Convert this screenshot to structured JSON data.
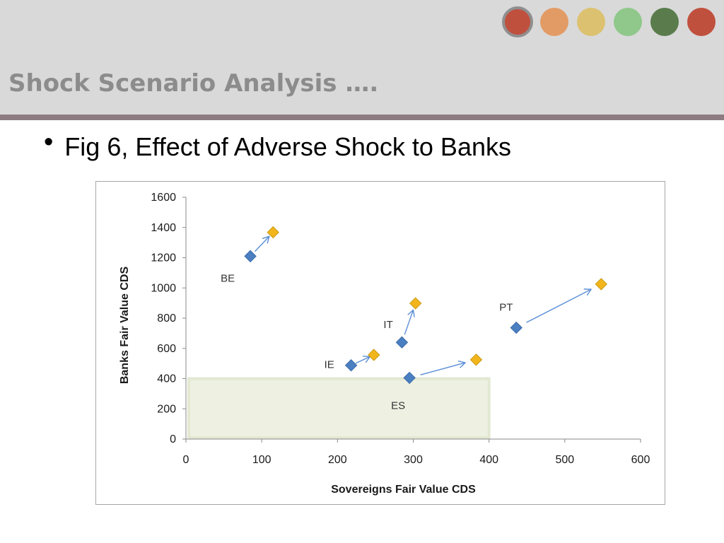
{
  "header": {
    "title": "Shock Scenario Analysis ….",
    "dots": [
      {
        "color": "#c0503e",
        "active": true
      },
      {
        "color": "#e39b65",
        "active": false
      },
      {
        "color": "#dcc170",
        "active": false
      },
      {
        "color": "#8fc88a",
        "active": false
      },
      {
        "color": "#5a7c4c",
        "active": false
      },
      {
        "color": "#c0503e",
        "active": false
      }
    ]
  },
  "bullet": {
    "glyph": "•",
    "text": "Fig 6, Effect of Adverse Shock to Banks"
  },
  "chart_data": {
    "type": "scatter",
    "title": "",
    "xlabel": "Sovereigns Fair Value CDS",
    "ylabel": "Banks Fair Value CDS",
    "xlim": [
      0,
      600
    ],
    "ylim": [
      0,
      1600
    ],
    "xticks": [
      0,
      100,
      200,
      300,
      400,
      500,
      600
    ],
    "yticks": [
      0,
      200,
      400,
      600,
      800,
      1000,
      1200,
      1400,
      1600
    ],
    "grid": false,
    "legend": "none",
    "shaded_region": {
      "x": [
        0,
        400
      ],
      "y": [
        0,
        400
      ],
      "color": "#eef1e2",
      "border": "#e3e8d3"
    },
    "series": [
      {
        "color": "#4a7fc1",
        "points": [
          {
            "label": "BE",
            "x": 85,
            "y": 1210
          },
          {
            "label": "IT",
            "x": 285,
            "y": 640
          },
          {
            "label": "IE",
            "x": 218,
            "y": 488
          },
          {
            "label": "ES",
            "x": 295,
            "y": 405
          },
          {
            "label": "PT",
            "x": 436,
            "y": 737
          }
        ]
      },
      {
        "color": "#f2b61c",
        "points": [
          {
            "label": "BE",
            "x": 115,
            "y": 1368
          },
          {
            "label": "IT",
            "x": 303,
            "y": 898
          },
          {
            "label": "IE",
            "x": 248,
            "y": 557
          },
          {
            "label": "ES",
            "x": 383,
            "y": 525
          },
          {
            "label": "PT",
            "x": 548,
            "y": 1025
          }
        ]
      }
    ],
    "arrow_color": "#5b8ed6"
  }
}
